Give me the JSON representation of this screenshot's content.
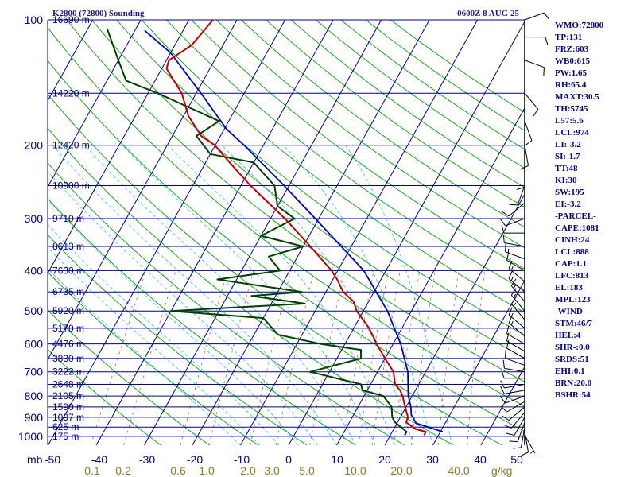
{
  "header": {
    "title": "K2800 (72800) Sounding",
    "time": "0600Z  8 AUG 25"
  },
  "indices": [
    "WMO:72800",
    "TP:131",
    "FRZ:603",
    "WB0:615",
    "PW:1.65",
    "RH:65.4",
    "MAXT:30.5",
    "TH:5745",
    "L57:5.6",
    "LCL:974",
    "LI:-3.2",
    "SI:-1.7",
    "TT:48",
    "KI:30",
    "SW:195",
    "EI:-3.2",
    "-PARCEL-",
    "CAPE:1081",
    "CINH:24",
    "LCL:888",
    "CAP:1.1",
    "LFC:813",
    "EL:183",
    "MPL:123",
    "-WIND-",
    "STM:46/7",
    "HEL:4",
    "SHR-:0.0",
    "SRDS:51",
    "EHI:0.1",
    "BRN:20.0",
    "BSHR:54"
  ],
  "colors": {
    "isobar": "#00008b",
    "isotherm": "#00008b",
    "dry_adiabat": "#00a000",
    "moist_adiabat": "#40c0e0",
    "mixing_ratio": "#8b7a28",
    "temperature": "#c00000",
    "dewpoint": "#004000",
    "parcel": "#0000c0"
  },
  "chart_data": {
    "type": "skew-t log-p sounding",
    "pressure_axis_label": "mb",
    "pressure_ticks": [
      100,
      200,
      300,
      400,
      500,
      600,
      700,
      800,
      900,
      1000
    ],
    "temperature_ticks": [
      "-50",
      "-40",
      "-30",
      "-20",
      "-10",
      "0",
      "10",
      "20",
      "30",
      "40",
      "50"
    ],
    "mixing_ratio_labels": [
      "0.1",
      "0.2",
      "0.6",
      "1.0",
      "2.0",
      "3.0",
      "5.0",
      "10.0",
      "20.0",
      "40.0"
    ],
    "mixing_ratio_unit": "g/kg",
    "height_labels": [
      {
        "p": 100,
        "text": "16690 m"
      },
      {
        "p": 150,
        "text": "14220 m"
      },
      {
        "p": 200,
        "text": "12420 m"
      },
      {
        "p": 250,
        "text": "10900 m"
      },
      {
        "p": 300,
        "text": "9710 m"
      },
      {
        "p": 350,
        "text": "8613 m"
      },
      {
        "p": 400,
        "text": "7630 m"
      },
      {
        "p": 450,
        "text": "6735 m"
      },
      {
        "p": 500,
        "text": "5920 m"
      },
      {
        "p": 550,
        "text": "5170 m"
      },
      {
        "p": 600,
        "text": "4476 m"
      },
      {
        "p": 650,
        "text": "3830 m"
      },
      {
        "p": 700,
        "text": "3222 m"
      },
      {
        "p": 750,
        "text": "2648 m"
      },
      {
        "p": 800,
        "text": "2105 m"
      },
      {
        "p": 850,
        "text": "1590 m"
      },
      {
        "p": 900,
        "text": "1097 m"
      },
      {
        "p": 950,
        "text": "625 m"
      },
      {
        "p": 1000,
        "text": "175 m"
      }
    ],
    "temperature": [
      {
        "p": 994,
        "t": 27.0
      },
      {
        "p": 975,
        "t": 27.0
      },
      {
        "p": 960,
        "t": 24.5
      },
      {
        "p": 925,
        "t": 21.8
      },
      {
        "p": 900,
        "t": 21.6
      },
      {
        "p": 850,
        "t": 19.8
      },
      {
        "p": 800,
        "t": 18.0
      },
      {
        "p": 775,
        "t": 16.8
      },
      {
        "p": 750,
        "t": 15.1
      },
      {
        "p": 700,
        "t": 13.3
      },
      {
        "p": 650,
        "t": 10.0
      },
      {
        "p": 600,
        "t": 6.6
      },
      {
        "p": 550,
        "t": 3.2
      },
      {
        "p": 500,
        "t": -1.4
      },
      {
        "p": 475,
        "t": -3.1
      },
      {
        "p": 450,
        "t": -6.4
      },
      {
        "p": 420,
        "t": -9.1
      },
      {
        "p": 400,
        "t": -11.3
      },
      {
        "p": 350,
        "t": -18.5
      },
      {
        "p": 300,
        "t": -27.0
      },
      {
        "p": 250,
        "t": -38.0
      },
      {
        "p": 220,
        "t": -45.0
      },
      {
        "p": 200,
        "t": -50.1
      },
      {
        "p": 190,
        "t": -54.0
      },
      {
        "p": 170,
        "t": -59.0
      },
      {
        "p": 150,
        "t": -63.0
      },
      {
        "p": 131,
        "t": -69.0
      },
      {
        "p": 125,
        "t": -69.5
      },
      {
        "p": 115,
        "t": -66.5
      },
      {
        "p": 100,
        "t": -65.0
      }
    ],
    "dewpoint": [
      {
        "p": 994,
        "t": 23.0
      },
      {
        "p": 975,
        "t": 23.0
      },
      {
        "p": 925,
        "t": 19.5
      },
      {
        "p": 900,
        "t": 18.3
      },
      {
        "p": 850,
        "t": 17.0
      },
      {
        "p": 800,
        "t": 14.0
      },
      {
        "p": 775,
        "t": 9.0
      },
      {
        "p": 750,
        "t": 8.0
      },
      {
        "p": 700,
        "t": -4.0
      },
      {
        "p": 650,
        "t": 5.0
      },
      {
        "p": 620,
        "t": 4.0
      },
      {
        "p": 600,
        "t": -5.0
      },
      {
        "p": 570,
        "t": -15.0
      },
      {
        "p": 520,
        "t": -20.0
      },
      {
        "p": 500,
        "t": -40.0
      },
      {
        "p": 480,
        "t": -13.0
      },
      {
        "p": 460,
        "t": -25.0
      },
      {
        "p": 450,
        "t": -15.0
      },
      {
        "p": 420,
        "t": -34.0
      },
      {
        "p": 400,
        "t": -22.0
      },
      {
        "p": 370,
        "t": -26.0
      },
      {
        "p": 350,
        "t": -20.0
      },
      {
        "p": 330,
        "t": -30.0
      },
      {
        "p": 300,
        "t": -25.0
      },
      {
        "p": 280,
        "t": -30.0
      },
      {
        "p": 250,
        "t": -33.0
      },
      {
        "p": 220,
        "t": -40.0
      },
      {
        "p": 210,
        "t": -50.0
      },
      {
        "p": 190,
        "t": -55.0
      },
      {
        "p": 175,
        "t": -52.0
      },
      {
        "p": 150,
        "t": -68.0
      },
      {
        "p": 140,
        "t": -76.0
      },
      {
        "p": 125,
        "t": -80.0
      },
      {
        "p": 105,
        "t": -86.0
      }
    ],
    "parcel": [
      {
        "p": 975,
        "t": 30.5
      },
      {
        "p": 930,
        "t": 24.0
      },
      {
        "p": 888,
        "t": 22.0
      },
      {
        "p": 850,
        "t": 21.0
      },
      {
        "p": 800,
        "t": 19.2
      },
      {
        "p": 700,
        "t": 16.3
      },
      {
        "p": 600,
        "t": 11.6
      },
      {
        "p": 500,
        "t": 5.0
      },
      {
        "p": 400,
        "t": -4.6
      },
      {
        "p": 300,
        "t": -20.7
      },
      {
        "p": 250,
        "t": -31.0
      },
      {
        "p": 200,
        "t": -44.0
      },
      {
        "p": 183,
        "t": -49.5
      },
      {
        "p": 150,
        "t": -59.0
      },
      {
        "p": 120,
        "t": -70.0
      },
      {
        "p": 106,
        "t": -78.0
      }
    ],
    "wind_barbs": [
      {
        "p": 994,
        "dir": 150,
        "spd": 5
      },
      {
        "p": 975,
        "dir": 170,
        "spd": 10
      },
      {
        "p": 950,
        "dir": 190,
        "spd": 10
      },
      {
        "p": 925,
        "dir": 200,
        "spd": 10
      },
      {
        "p": 900,
        "dir": 210,
        "spd": 10
      },
      {
        "p": 875,
        "dir": 220,
        "spd": 10
      },
      {
        "p": 850,
        "dir": 230,
        "spd": 10
      },
      {
        "p": 825,
        "dir": 240,
        "spd": 10
      },
      {
        "p": 800,
        "dir": 250,
        "spd": 10
      },
      {
        "p": 775,
        "dir": 260,
        "spd": 10
      },
      {
        "p": 750,
        "dir": 260,
        "spd": 10
      },
      {
        "p": 725,
        "dir": 270,
        "spd": 10
      },
      {
        "p": 700,
        "dir": 280,
        "spd": 10
      },
      {
        "p": 675,
        "dir": 290,
        "spd": 10
      },
      {
        "p": 650,
        "dir": 300,
        "spd": 10
      },
      {
        "p": 625,
        "dir": 300,
        "spd": 10
      },
      {
        "p": 600,
        "dir": 300,
        "spd": 15
      },
      {
        "p": 575,
        "dir": 310,
        "spd": 15
      },
      {
        "p": 550,
        "dir": 310,
        "spd": 15
      },
      {
        "p": 525,
        "dir": 320,
        "spd": 15
      },
      {
        "p": 500,
        "dir": 320,
        "spd": 15
      },
      {
        "p": 475,
        "dir": 320,
        "spd": 15
      },
      {
        "p": 450,
        "dir": 310,
        "spd": 15
      },
      {
        "p": 425,
        "dir": 310,
        "spd": 15
      },
      {
        "p": 400,
        "dir": 300,
        "spd": 15
      },
      {
        "p": 375,
        "dir": 290,
        "spd": 15
      },
      {
        "p": 350,
        "dir": 280,
        "spd": 10
      },
      {
        "p": 325,
        "dir": 270,
        "spd": 10
      },
      {
        "p": 300,
        "dir": 250,
        "spd": 10
      },
      {
        "p": 275,
        "dir": 230,
        "spd": 10
      },
      {
        "p": 250,
        "dir": 200,
        "spd": 10
      },
      {
        "p": 225,
        "dir": 180,
        "spd": 10
      },
      {
        "p": 200,
        "dir": 170,
        "spd": 10
      },
      {
        "p": 175,
        "dir": 160,
        "spd": 10
      },
      {
        "p": 150,
        "dir": 140,
        "spd": 10
      },
      {
        "p": 125,
        "dir": 110,
        "spd": 10
      },
      {
        "p": 110,
        "dir": 90,
        "spd": 10
      },
      {
        "p": 100,
        "dir": 70,
        "spd": 10
      }
    ]
  }
}
